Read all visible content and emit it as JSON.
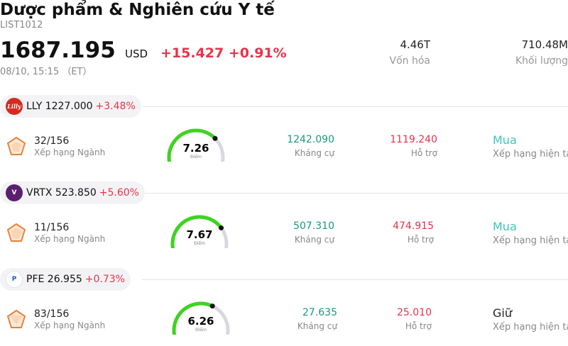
{
  "header": {
    "title": "Dược phẩm & Nghiên cứu Y tế",
    "code": "LIST1012",
    "price": "1687.195",
    "currency": "USD",
    "change": "+15.427 +0.91%",
    "time": "08/10, 15:15 （ET）",
    "market_cap_value": "4.46T",
    "market_cap_label": "Vốn hóa",
    "volume_value": "710.48M",
    "volume_label": "Khối lượng"
  },
  "stocks": [
    {
      "ticker_price": "LLY 1227.000",
      "pct": "+3.48%",
      "logo_text": "Lilly",
      "logo_color": "#d52b1e",
      "rank": "32/156",
      "rank_label": "Xếp hạng Ngành",
      "score": "7.26",
      "score_fraction": 0.726,
      "score_label": "Điểm",
      "resistance": "1242.090",
      "resistance_label": "Kháng cự",
      "support": "1119.240",
      "support_label": "Hỗ trợ",
      "rating": "Mua",
      "rating_color": "#3cc7bd",
      "rating_label": "Xếp hạng hiện tại"
    },
    {
      "ticker_price": "VRTX 523.850",
      "pct": "+5.60%",
      "logo_text": "V",
      "logo_color": "#5a1f6e",
      "rank": "11/156",
      "rank_label": "Xếp hạng Ngành",
      "score": "7.67",
      "score_fraction": 0.767,
      "score_label": "Điểm",
      "resistance": "507.310",
      "resistance_label": "Kháng cự",
      "support": "474.915",
      "support_label": "Hỗ trợ",
      "rating": "Mua",
      "rating_color": "#3cc7bd",
      "rating_label": "Xếp hạng hiện tại"
    },
    {
      "ticker_price": "PFE 26.955",
      "pct": "+0.73%",
      "logo_text": "P",
      "logo_color": "#1560bd",
      "rank": "83/156",
      "rank_label": "Xếp hạng Ngành",
      "score": "6.26",
      "score_fraction": 0.626,
      "score_label": "Điểm",
      "resistance": "27.635",
      "resistance_label": "Kháng cự",
      "support": "25.010",
      "support_label": "Hỗ trợ",
      "rating": "Giữ",
      "rating_color": "#222222",
      "rating_label": "Xếp hạng hiện tại"
    }
  ]
}
